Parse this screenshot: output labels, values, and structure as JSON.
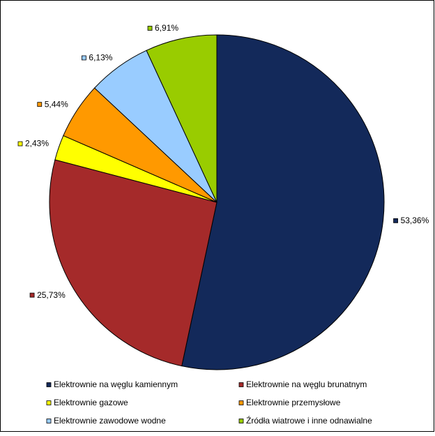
{
  "chart_data": {
    "type": "pie",
    "categories": [
      "Elektrownie na węglu kamiennym",
      "Elektrownie na węglu brunatnym",
      "Elektrownie gazowe",
      "Elektrownie przemysłowe",
      "Elektrownie zawodowe wodne",
      "Źródła wiatrowe i inne odnawialne"
    ],
    "values": [
      53.36,
      25.73,
      2.43,
      5.44,
      6.13,
      6.91
    ],
    "value_labels": [
      "53,36%",
      "25,73%",
      "2,43%",
      "5,44%",
      "6,13%",
      "6,91%"
    ],
    "colors": [
      "#13295a",
      "#a52a2a",
      "#ffff00",
      "#ff9900",
      "#99ccff",
      "#99cc00"
    ],
    "legend": "bottom"
  }
}
